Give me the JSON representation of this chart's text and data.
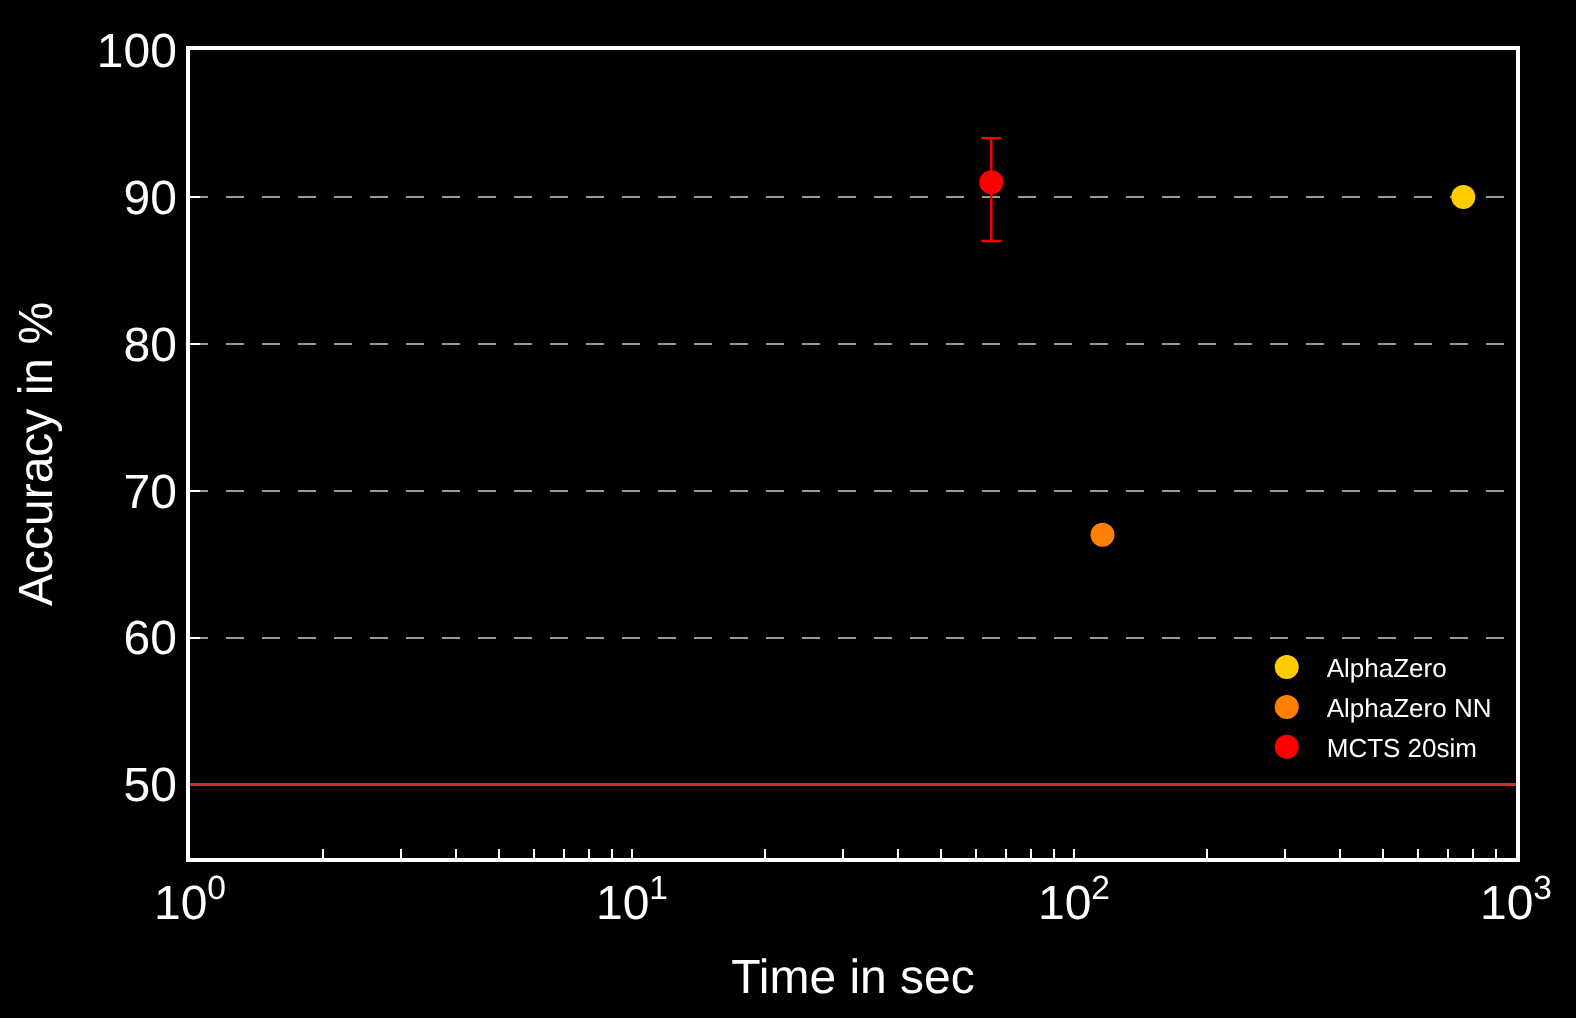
{
  "chart_data": {
    "type": "scatter",
    "xlabel": "Time in sec",
    "ylabel": "Accuracy in %",
    "log": "x",
    "xlim": [
      1,
      1000
    ],
    "xticks": [
      {
        "value": 1,
        "label": "10$^{0}$"
      },
      {
        "value": 10,
        "label": "10$^{1}$"
      },
      {
        "value": 100,
        "label": "10$^{2}$"
      },
      {
        "value": 1000,
        "label": "10$^{3}$"
      }
    ],
    "ylim": [
      45,
      100
    ],
    "yticks": [
      50,
      60,
      70,
      80,
      90,
      100
    ],
    "grid": "y",
    "legend": "bottom right",
    "marker": "circle",
    "series": [
      {
        "name": "AlphaZero",
        "color": "#ffcc00",
        "x": [
          760
        ],
        "values": [
          90
        ]
      },
      {
        "name": "AlphaZero NN",
        "color": "#ff8000",
        "x": [
          116
        ],
        "values": [
          67
        ]
      },
      {
        "name": "MCTS 20sim",
        "color": "#ff0000",
        "x": [
          65
        ],
        "values": [
          91
        ],
        "errors": [
          [
            87,
            94
          ]
        ]
      }
    ],
    "ref_lines": [
      {
        "axis": "y",
        "value": 50,
        "color": "#c83030",
        "line_style": "solid"
      }
    ]
  }
}
